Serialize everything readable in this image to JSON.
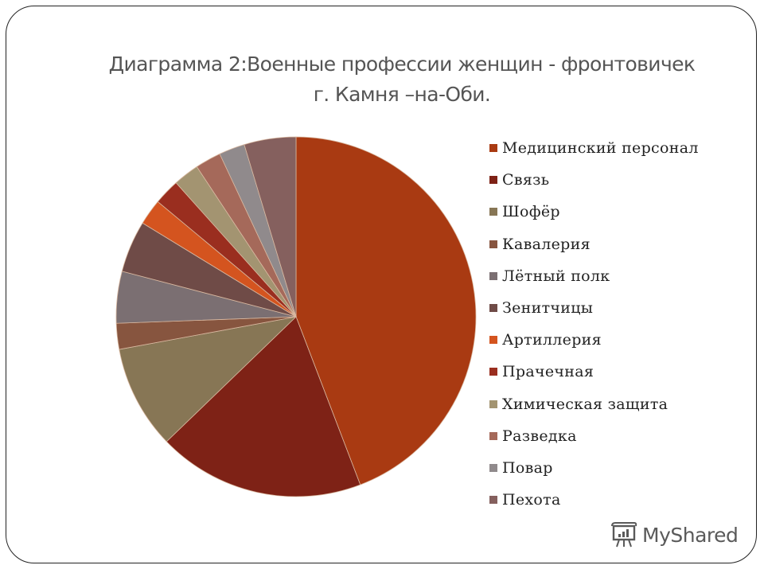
{
  "title": {
    "line1": "Диаграмма 2:Военные профессии женщин - фронтовичек",
    "line2": "г. Камня –на-Оби."
  },
  "chart_data": {
    "type": "pie",
    "title": "Диаграмма 2:Военные профессии женщин - фронтовичек г. Камня –на-Оби.",
    "start_angle_deg": 0,
    "direction": "clockwise",
    "legend_position": "right",
    "categories": [
      "Медицинский персонал",
      "Связь",
      "Шофёр",
      "Кавалерия",
      "Лётный полк",
      "Зенитчицы",
      "Артиллерия",
      "Прачечная",
      "Химическая защита",
      "Разведка",
      "Повар",
      "Пехота"
    ],
    "values": [
      19,
      8,
      4,
      1,
      2,
      2,
      1,
      1,
      1,
      1,
      1,
      2
    ],
    "colors": [
      "#A93A12",
      "#7E2216",
      "#877655",
      "#87553F",
      "#7B6F72",
      "#6F4B47",
      "#D4541F",
      "#9A2E1F",
      "#A39471",
      "#A5695A",
      "#908A8C",
      "#85605E"
    ]
  },
  "legend": {
    "items": [
      {
        "label": "Медицинский персонал",
        "color": "#A93A12"
      },
      {
        "label": "Связь",
        "color": "#7E2216"
      },
      {
        "label": "Шофёр",
        "color": "#877655"
      },
      {
        "label": "Кавалерия",
        "color": "#87553F"
      },
      {
        "label": "Лётный полк",
        "color": "#7B6F72"
      },
      {
        "label": "Зенитчицы",
        "color": "#6F4B47"
      },
      {
        "label": "Артиллерия",
        "color": "#D4541F"
      },
      {
        "label": "Прачечная",
        "color": "#9A2E1F"
      },
      {
        "label": "Химическая защита",
        "color": "#A39471"
      },
      {
        "label": "Разведка",
        "color": "#A5695A"
      },
      {
        "label": "Повар",
        "color": "#908A8C"
      },
      {
        "label": "Пехота",
        "color": "#85605E"
      }
    ]
  },
  "watermark": {
    "text": "MyShared",
    "icon": "presentation-board-icon"
  }
}
